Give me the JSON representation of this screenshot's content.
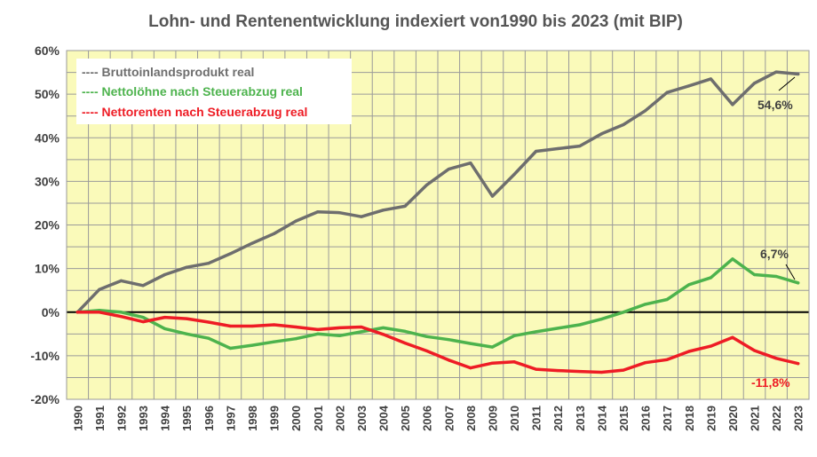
{
  "chart_data": {
    "type": "line",
    "title": "Lohn- und Rentenentwicklung indexiert  von1990 bis 2023 (mit BIP)",
    "x": [
      "1990",
      "1991",
      "1992",
      "1993",
      "1994",
      "1995",
      "1996",
      "1997",
      "1998",
      "1999",
      "2000",
      "2001",
      "2002",
      "2003",
      "2004",
      "2005",
      "2006",
      "2007",
      "2008",
      "2009",
      "2010",
      "2011",
      "2012",
      "2013",
      "2014",
      "2015",
      "2016",
      "2017",
      "2018",
      "2019",
      "2020",
      "2021",
      "2022",
      "2023"
    ],
    "ylim": [
      -20,
      60
    ],
    "yticks": [
      "-20%",
      "-10%",
      "0%",
      "10%",
      "20%",
      "30%",
      "40%",
      "50%",
      "60%"
    ],
    "ytick_values": [
      -20,
      -10,
      0,
      10,
      20,
      30,
      40,
      50,
      60
    ],
    "grid": true,
    "legend_position": "top-left",
    "series": [
      {
        "name": "---- Bruttoinlandsprodukt real",
        "color": "#6e6e6e",
        "values": [
          0,
          5.2,
          7.2,
          6.1,
          8.6,
          10.3,
          11.2,
          13.4,
          15.8,
          18.0,
          20.9,
          23.0,
          22.8,
          21.9,
          23.4,
          24.3,
          29.2,
          32.8,
          34.2,
          26.6,
          31.6,
          36.9,
          37.5,
          38.1,
          40.9,
          43.0,
          46.2,
          50.4,
          51.9,
          53.5,
          47.6,
          52.5,
          55.1,
          54.6
        ],
        "end_label": "54,6%"
      },
      {
        "name": "---- Nettolöhne nach Steuerabzug real",
        "color": "#4db34d",
        "values": [
          0,
          0.4,
          0,
          -1.2,
          -3.8,
          -5.0,
          -6.0,
          -8.3,
          -7.6,
          -6.8,
          -6.1,
          -5.0,
          -5.4,
          -4.5,
          -3.6,
          -4.4,
          -5.6,
          -6.3,
          -7.2,
          -8.0,
          -5.4,
          -4.5,
          -3.7,
          -2.9,
          -1.6,
          0,
          1.8,
          2.9,
          6.3,
          7.9,
          12.2,
          8.6,
          8.2,
          6.7
        ],
        "end_label": "6,7%"
      },
      {
        "name": "---- Nettorenten nach Steuerabzug real",
        "color": "#ee1c25",
        "values": [
          0,
          0,
          -1.0,
          -2.2,
          -1.2,
          -1.5,
          -2.3,
          -3.2,
          -3.2,
          -2.9,
          -3.4,
          -4.0,
          -3.6,
          -3.4,
          -5.1,
          -7.1,
          -8.9,
          -11.0,
          -12.8,
          -11.7,
          -11.4,
          -13.1,
          -13.4,
          -13.6,
          -13.8,
          -13.3,
          -11.6,
          -10.9,
          -9.0,
          -7.8,
          -5.8,
          -8.8,
          -10.6,
          -11.8
        ],
        "end_label": "-11,8%"
      }
    ]
  }
}
